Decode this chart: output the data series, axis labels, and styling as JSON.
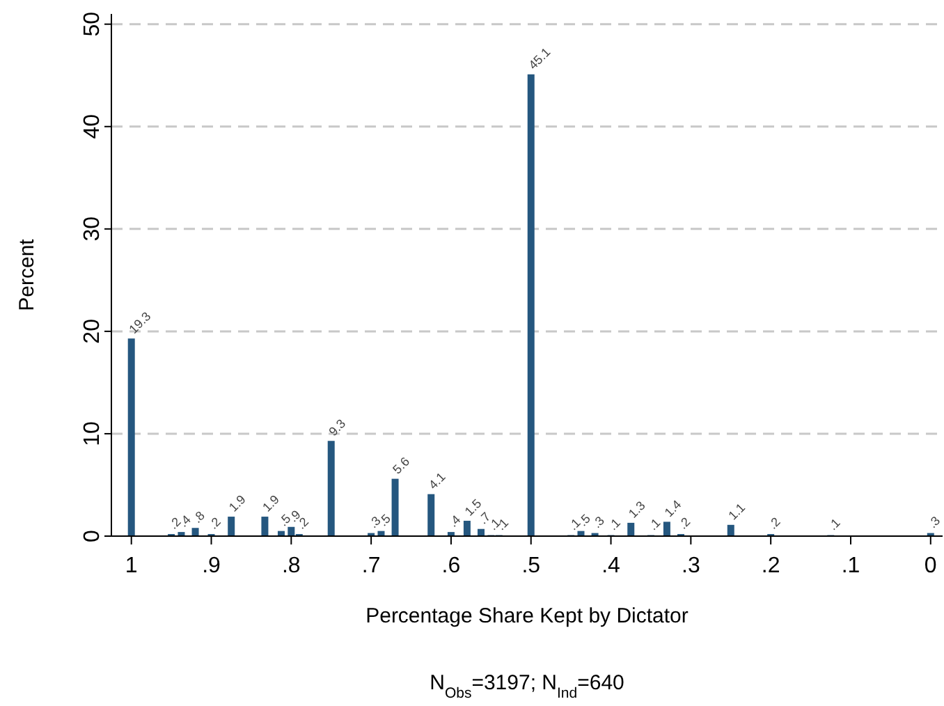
{
  "chart_data": {
    "type": "bar",
    "xlabel": "Percentage Share Kept by Dictator",
    "ylabel": "Percent",
    "annotations": [
      "N$_{Obs}$=3197; N$_{Ind}$=640"
    ],
    "x": [
      1,
      0.95,
      0.9375,
      0.92,
      0.9,
      0.875,
      0.833,
      0.8125,
      0.8,
      0.79,
      0.75,
      0.7,
      0.6875,
      0.67,
      0.625,
      0.6,
      0.58,
      0.5625,
      0.55,
      0.54,
      0.5,
      0.45,
      0.4375,
      0.42,
      0.4,
      0.375,
      0.35,
      0.33,
      0.3125,
      0.25,
      0.2,
      0.125,
      0
    ],
    "values": [
      19.3,
      0.2,
      0.4,
      0.8,
      0.2,
      1.9,
      1.9,
      0.5,
      0.9,
      0.2,
      9.3,
      0.3,
      0.5,
      5.6,
      4.1,
      0.4,
      1.5,
      0.7,
      0.1,
      0.1,
      45.1,
      0.1,
      0.5,
      0.3,
      0.1,
      1.3,
      0.1,
      1.4,
      0.2,
      1.1,
      0.2,
      0.1,
      0.3
    ],
    "value_labels": [
      "19.3",
      ".2",
      ".4",
      ".8",
      ".2",
      "1.9",
      "1.9",
      ".5",
      ".9",
      ".2",
      "9.3",
      ".3",
      ".5",
      "5.6",
      "4.1",
      ".4",
      "1.5",
      ".7",
      ".1",
      ".1",
      "45.1",
      ".1",
      ".5",
      ".3",
      ".1",
      "1.3",
      ".1",
      "1.4",
      ".2",
      "1.1",
      ".2",
      ".1",
      ".3"
    ],
    "color": "#25577f",
    "xlim": [
      1.025,
      -0.015
    ],
    "xticks": [
      1,
      {
        "value": 0.9,
        "label": ".9"
      },
      {
        "value": 0.8,
        "label": ".8"
      },
      {
        "value": 0.7,
        "label": ".7"
      },
      {
        "value": 0.6,
        "label": ".6"
      },
      {
        "value": 0.5,
        "label": ".5"
      },
      {
        "value": 0.4,
        "label": ".4"
      },
      {
        "value": 0.3,
        "label": ".3"
      },
      {
        "value": 0.2,
        "label": ".2"
      },
      {
        "value": 0.1,
        "label": ".1"
      },
      0
    ],
    "ylim": [
      0,
      51
    ],
    "yticks": [
      0,
      10,
      20,
      30,
      40,
      50
    ],
    "grid": "y"
  }
}
